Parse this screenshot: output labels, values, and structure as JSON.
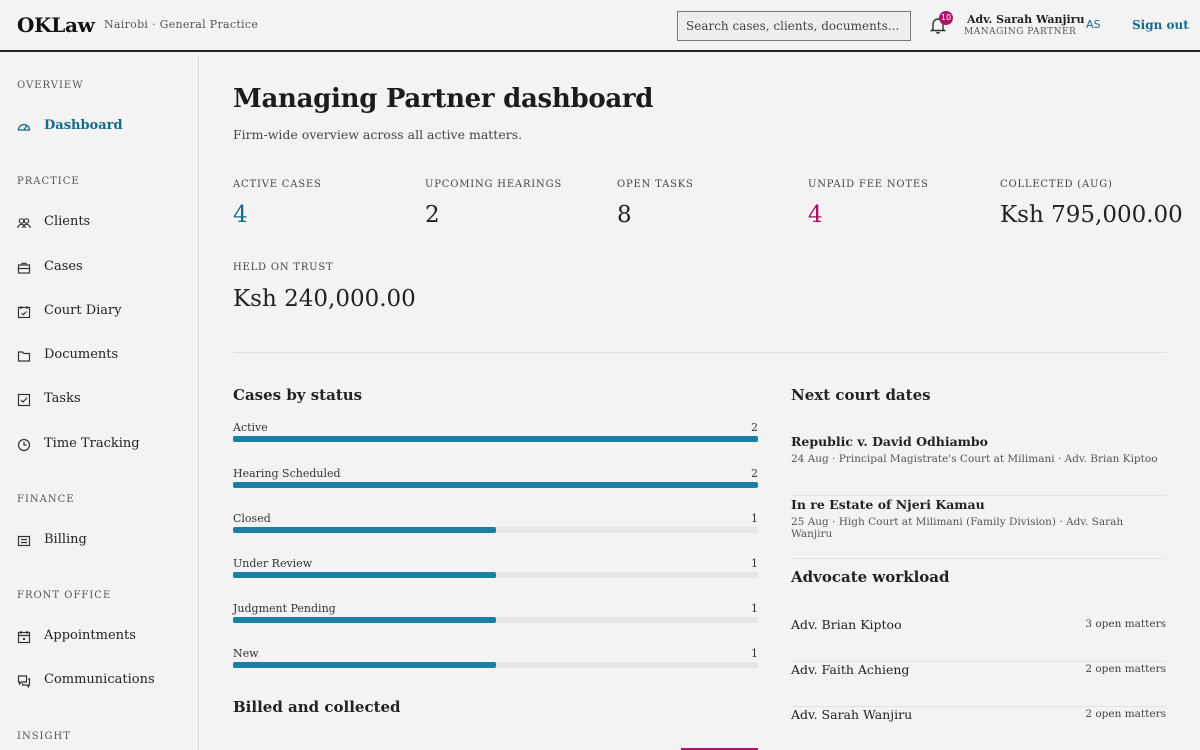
{
  "header": {
    "brand": "OKLaw",
    "firm": "Nairobi · General Practice",
    "search_placeholder": "Search cases, clients, documents...",
    "notifications": "10",
    "user_name": "Adv. Sarah Wanjiru",
    "user_role": "MANAGING PARTNER",
    "avatar": "AS",
    "signout": "Sign out"
  },
  "sidebar": {
    "sections": {
      "overview": "OVERVIEW",
      "practice": "PRACTICE",
      "finance": "FINANCE",
      "front_office": "FRONT OFFICE",
      "insight": "INSIGHT"
    },
    "items": {
      "dashboard": "Dashboard",
      "clients": "Clients",
      "cases": "Cases",
      "court_diary": "Court Diary",
      "documents": "Documents",
      "tasks": "Tasks",
      "time_tracking": "Time Tracking",
      "billing": "Billing",
      "appointments": "Appointments",
      "communications": "Communications"
    }
  },
  "main": {
    "title": "Managing Partner dashboard",
    "subtitle": "Firm-wide overview across all active matters.",
    "stats": {
      "active_cases_label": "ACTIVE CASES",
      "active_cases": "4",
      "hearings_label": "UPCOMING HEARINGS",
      "hearings": "2",
      "tasks_label": "OPEN TASKS",
      "tasks": "8",
      "unpaid_label": "UNPAID FEE NOTES",
      "unpaid": "4",
      "collected_label": "COLLECTED (AUG)",
      "collected": "Ksh 795,000.00",
      "trust_label": "HELD ON TRUST",
      "trust": "Ksh 240,000.00"
    },
    "cases_by_status_title": "Cases by status",
    "cases_by_status": [
      {
        "label": "Active",
        "count": "2",
        "value": 2
      },
      {
        "label": "Hearing Scheduled",
        "count": "2",
        "value": 2
      },
      {
        "label": "Closed",
        "count": "1",
        "value": 1
      },
      {
        "label": "Under Review",
        "count": "1",
        "value": 1
      },
      {
        "label": "Judgment Pending",
        "count": "1",
        "value": 1
      },
      {
        "label": "New",
        "count": "1",
        "value": 1
      }
    ],
    "billed_title": "Billed and collected",
    "court_title": "Next court dates",
    "court_dates": [
      {
        "title": "Republic v. David Odhiambo",
        "detail": "24 Aug · Principal Magistrate's Court at Milimani · Adv. Brian Kiptoo"
      },
      {
        "title": "In re Estate of Njeri Kamau",
        "detail": "25 Aug · High Court at Milimani (Family Division) · Adv. Sarah Wanjiru"
      }
    ],
    "workload_title": "Advocate workload",
    "workload": [
      {
        "name": "Adv. Brian Kiptoo",
        "count": "3 open matters"
      },
      {
        "name": "Adv. Faith Achieng",
        "count": "2 open matters"
      },
      {
        "name": "Adv. Sarah Wanjiru",
        "count": "2 open matters"
      }
    ]
  },
  "colors": {
    "accent": "#136a8f",
    "bar": "#1a7fa3",
    "alert": "#a3115e"
  }
}
